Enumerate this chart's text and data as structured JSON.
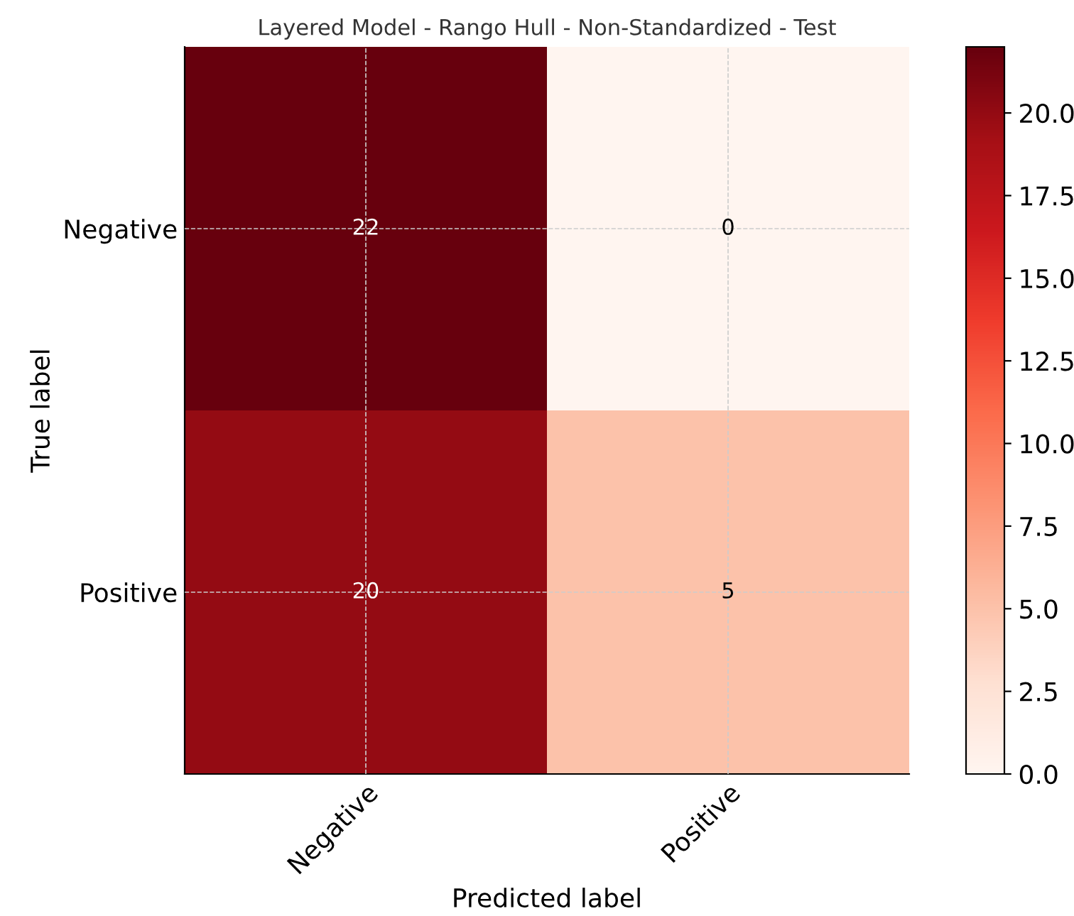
{
  "chart_data": {
    "type": "heatmap",
    "title": "Layered Model - Rango Hull - Non-Standardized - Test",
    "xlabel": "Predicted label",
    "ylabel": "True label",
    "categories": [
      "Negative",
      "Positive"
    ],
    "y_categories": [
      "Negative",
      "Positive"
    ],
    "cells": [
      [
        22,
        0
      ],
      [
        20,
        5
      ]
    ],
    "data_labels": true,
    "clim": [
      0,
      22
    ],
    "cticks": [
      {
        "value": 0,
        "label": "0.0"
      },
      {
        "value": 2.5,
        "label": "2.5"
      },
      {
        "value": 5,
        "label": "5.0"
      },
      {
        "value": 7.5,
        "label": "7.5"
      },
      {
        "value": 10,
        "label": "10.0"
      },
      {
        "value": 12.5,
        "label": "12.5"
      },
      {
        "value": 15,
        "label": "15.0"
      },
      {
        "value": 17.5,
        "label": "17.5"
      },
      {
        "value": 20,
        "label": "20.0"
      }
    ],
    "grid": true
  }
}
